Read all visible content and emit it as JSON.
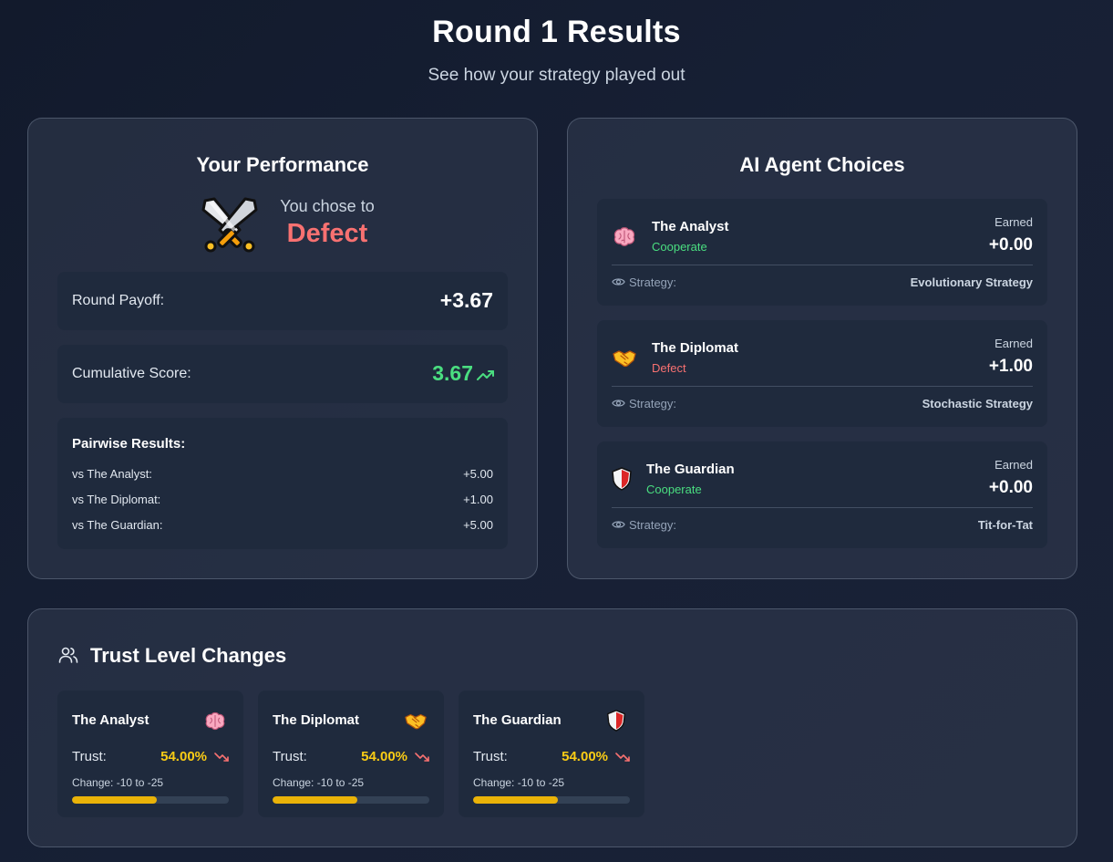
{
  "header": {
    "title": "Round 1 Results",
    "subtitle": "See how your strategy played out"
  },
  "performance": {
    "heading": "Your Performance",
    "chose_label": "You chose to",
    "choice": "Defect",
    "choice_icon": "crossed-swords-icon",
    "round_payoff_label": "Round Payoff:",
    "round_payoff": "+3.67",
    "cumulative_label": "Cumulative Score:",
    "cumulative": "3.67",
    "pairwise": {
      "title": "Pairwise Results:",
      "rows": [
        {
          "label": "vs The Analyst:",
          "value": "+5.00"
        },
        {
          "label": "vs The Diplomat:",
          "value": "+1.00"
        },
        {
          "label": "vs The Guardian:",
          "value": "+5.00"
        }
      ]
    }
  },
  "ai_agents": {
    "heading": "AI Agent Choices",
    "earned_label": "Earned",
    "strategy_label": "Strategy:",
    "agents": [
      {
        "name": "The Analyst",
        "choice": "Cooperate",
        "earned": "+0.00",
        "strategy": "Evolutionary Strategy",
        "icon": "brain-icon"
      },
      {
        "name": "The Diplomat",
        "choice": "Defect",
        "earned": "+1.00",
        "strategy": "Stochastic Strategy",
        "icon": "handshake-icon"
      },
      {
        "name": "The Guardian",
        "choice": "Cooperate",
        "earned": "+0.00",
        "strategy": "Tit-for-Tat",
        "icon": "shield-icon"
      }
    ]
  },
  "trust": {
    "heading": "Trust Level Changes",
    "trust_label": "Trust:",
    "cards": [
      {
        "name": "The Analyst",
        "trust": "54.00%",
        "trust_fraction": 0.54,
        "change": "Change: -10 to -25",
        "icon": "brain-icon"
      },
      {
        "name": "The Diplomat",
        "trust": "54.00%",
        "trust_fraction": 0.54,
        "change": "Change: -10 to -25",
        "icon": "handshake-icon"
      },
      {
        "name": "The Guardian",
        "trust": "54.00%",
        "trust_fraction": 0.54,
        "change": "Change: -10 to -25",
        "icon": "shield-icon"
      }
    ]
  },
  "colors": {
    "defect": "#f87171",
    "cooperate": "#4ade80",
    "trust_bar": "#eab308",
    "trust_value": "#facc15"
  }
}
